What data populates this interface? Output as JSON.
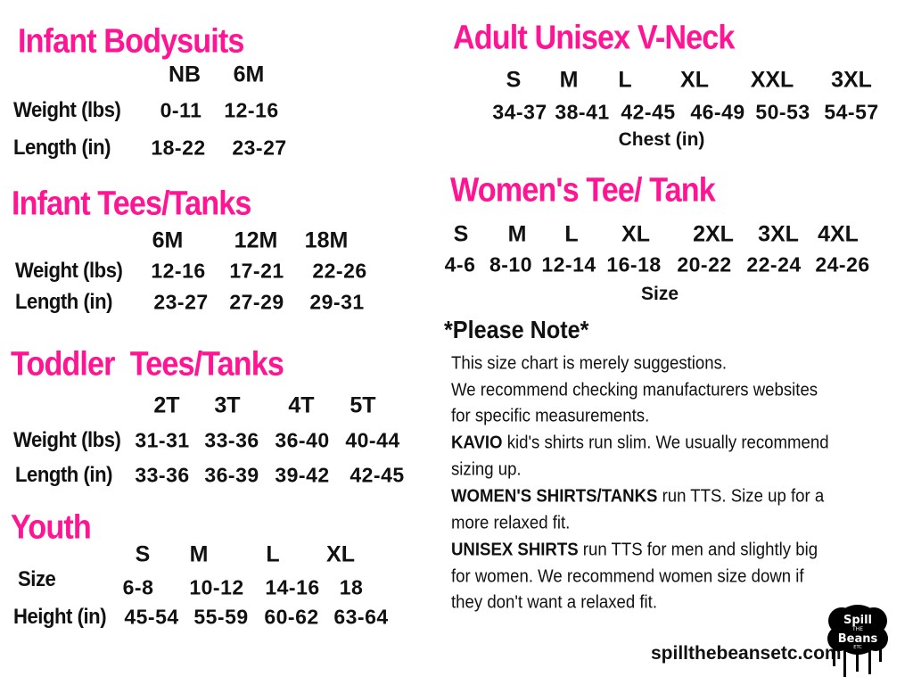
{
  "infant_bodysuits": {
    "title": "Infant Bodysuits",
    "sizes": [
      "NB",
      "6M"
    ],
    "weight_label": "Weight (lbs)",
    "weight": [
      "0-11",
      "12-16"
    ],
    "length_label": "Length (in)",
    "length": [
      "18-22",
      "23-27"
    ]
  },
  "infant_tees": {
    "title": "Infant Tees/Tanks",
    "sizes": [
      "6M",
      "12M",
      "18M"
    ],
    "weight_label": "Weight (lbs)",
    "weight": [
      "12-16",
      "17-21",
      "22-26"
    ],
    "length_label": "Length (in)",
    "length": [
      "23-27",
      "27-29",
      "29-31"
    ]
  },
  "toddler": {
    "title": "Toddler  Tees/Tanks",
    "sizes": [
      "2T",
      "3T",
      "4T",
      "5T"
    ],
    "weight_label": "Weight (lbs)",
    "weight": [
      "31-31",
      "33-36",
      "36-40",
      "40-44"
    ],
    "length_label": "Length (in)",
    "length": [
      "33-36",
      "36-39",
      "39-42",
      "42-45"
    ]
  },
  "youth": {
    "title": "Youth",
    "sizes": [
      "S",
      "M",
      "L",
      "XL"
    ],
    "size_label": "Size",
    "size_values": [
      "6-8",
      "10-12",
      "14-16",
      "18"
    ],
    "height_label": "Height (in)",
    "height": [
      "45-54",
      "55-59",
      "60-62",
      "63-64"
    ]
  },
  "adult_unisex": {
    "title": "Adult Unisex V-Neck",
    "sizes": [
      "S",
      "M",
      "L",
      "XL",
      "XXL",
      "3XL"
    ],
    "chest": [
      "34-37",
      "38-41",
      "42-45",
      "46-49",
      "50-53",
      "54-57"
    ],
    "chest_label": "Chest (in)"
  },
  "womens": {
    "title": "Women's Tee/ Tank",
    "sizes": [
      "S",
      "M",
      "L",
      "XL",
      "2XL",
      "3XL",
      "4XL"
    ],
    "values": [
      "4-6",
      "8-10",
      "12-14",
      "16-18",
      "20-22",
      "22-24",
      "24-26"
    ],
    "size_label": "Size"
  },
  "note": {
    "heading": "*Please Note*",
    "lines": [
      {
        "bold": "",
        "text": "This size chart is merely suggestions."
      },
      {
        "bold": "",
        "text": "We recommend checking manufacturers websites"
      },
      {
        "bold": "",
        "text": "for specific measurements."
      },
      {
        "bold": "KAVIO",
        "text": " kid's shirts run slim. We usually recommend"
      },
      {
        "bold": "",
        "text": "sizing up."
      },
      {
        "bold": "WOMEN'S SHIRTS/TANKS",
        "text": " run TTS. Size up for a"
      },
      {
        "bold": "",
        "text": "more relaxed fit."
      },
      {
        "bold": "UNISEX SHIRTS",
        "text": " run TTS for men and slightly big"
      },
      {
        "bold": "",
        "text": "for women. We recommend women size down if"
      },
      {
        "bold": "",
        "text": "they don't want a relaxed fit."
      }
    ]
  },
  "footer": {
    "website": "spillthebeansetc.com",
    "logo_text": [
      "Spill",
      "THE",
      "Beans",
      "ETC"
    ]
  },
  "colors": {
    "accent": "#ff1493",
    "text": "#111111"
  }
}
